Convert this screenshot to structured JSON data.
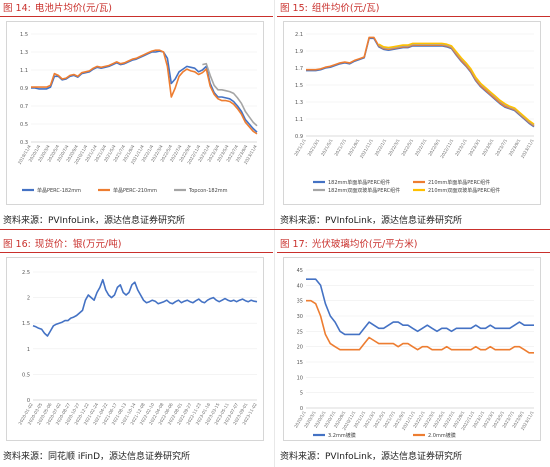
{
  "panels": [
    {
      "fig_label": "图 14:",
      "title": "电池片均价(元/瓦)",
      "source": "资料来源：PVInfoLink，源达信息证券研究所",
      "chart_data": {
        "type": "line",
        "title": "",
        "ylim": [
          0.3,
          1.5
        ],
        "yticks": [
          "0.3",
          "0.5",
          "0.7",
          "0.9",
          "1.1",
          "1.3",
          "1.5"
        ],
        "xticks": [
          "2019/11/4",
          "2020/1/4",
          "2020/3/4",
          "2020/5/4",
          "2020/7/4",
          "2020/9/4",
          "2020/11/4",
          "2021/1/4",
          "2021/3/4",
          "2021/5/4",
          "2021/7/4",
          "2021/9/4",
          "2021/11/4",
          "2022/1/4",
          "2022/3/4",
          "2022/5/4",
          "2022/7/4",
          "2022/9/4",
          "2022/11/4",
          "2023/1/4",
          "2023/3/4",
          "2023/5/4",
          "2023/7/4",
          "2023/9/4",
          "2023/11/4"
        ],
        "legend": "bottom",
        "series": [
          {
            "name": "单晶PERC-182mm",
            "color": "#4472c4",
            "values": [
              0.9,
              0.9,
              0.89,
              0.89,
              0.89,
              0.91,
              1.03,
              1.03,
              0.99,
              1.0,
              1.03,
              1.04,
              1.02,
              1.06,
              1.07,
              1.08,
              1.11,
              1.13,
              1.12,
              1.13,
              1.14,
              1.16,
              1.18,
              1.16,
              1.17,
              1.19,
              1.21,
              1.22,
              1.24,
              1.26,
              1.28,
              1.3,
              1.3,
              1.31,
              1.3,
              1.23,
              0.95,
              1.0,
              1.08,
              1.11,
              1.14,
              1.13,
              1.12,
              1.08,
              1.1,
              1.14,
              0.95,
              0.85,
              0.8,
              0.8,
              0.79,
              0.78,
              0.75,
              0.7,
              0.64,
              0.55,
              0.5,
              0.45,
              0.41
            ]
          },
          {
            "name": "单晶PERC-210mm",
            "color": "#ed7d31",
            "values": [
              0.91,
              0.91,
              0.91,
              0.91,
              0.91,
              0.93,
              1.06,
              1.04,
              1.0,
              1.01,
              1.04,
              1.05,
              1.03,
              1.07,
              1.08,
              1.09,
              1.12,
              1.14,
              1.13,
              1.14,
              1.15,
              1.17,
              1.19,
              1.17,
              1.18,
              1.2,
              1.22,
              1.23,
              1.25,
              1.27,
              1.29,
              1.31,
              1.32,
              1.32,
              1.3,
              1.14,
              0.8,
              0.9,
              1.03,
              1.08,
              1.11,
              1.09,
              1.08,
              1.05,
              1.07,
              1.11,
              0.92,
              0.83,
              0.78,
              0.76,
              0.76,
              0.75,
              0.72,
              0.67,
              0.61,
              0.52,
              0.47,
              0.42,
              0.39
            ]
          },
          {
            "name": "Topcon-182mm",
            "color": "#a5a5a5",
            "values": [
              null,
              null,
              null,
              null,
              null,
              null,
              null,
              null,
              null,
              null,
              null,
              null,
              null,
              null,
              null,
              null,
              null,
              null,
              null,
              null,
              null,
              null,
              null,
              null,
              null,
              null,
              null,
              null,
              null,
              null,
              null,
              null,
              null,
              null,
              null,
              null,
              null,
              null,
              null,
              null,
              null,
              null,
              null,
              null,
              1.16,
              1.17,
              1.04,
              0.93,
              0.88,
              0.88,
              0.87,
              0.86,
              0.84,
              0.79,
              0.73,
              0.64,
              0.58,
              0.52,
              0.48
            ]
          }
        ]
      }
    },
    {
      "fig_label": "图 15:",
      "title": "组件均价(元/瓦)",
      "source": "资料来源：PVInfoLink，源达信息证券研究所",
      "chart_data": {
        "type": "line",
        "title": "",
        "ylim": [
          0.9,
          2.1
        ],
        "yticks": [
          "0.9",
          "1.1",
          "1.3",
          "1.5",
          "1.7",
          "1.9",
          "2.1"
        ],
        "xticks": [
          "2021/1/1",
          "2021/3/1",
          "2021/5/1",
          "2021/7/1",
          "2021/9/1",
          "2021/11/1",
          "2022/1/1",
          "2022/3/1",
          "2022/5/1",
          "2022/7/1",
          "2022/9/1",
          "2022/11/1",
          "2023/1/1",
          "2023/3/1",
          "2023/5/1",
          "2023/7/1",
          "2023/9/1",
          "2023/11/1"
        ],
        "legend": "bottom",
        "series": [
          {
            "name": "182mm单面单晶PERC组件",
            "color": "#4472c4",
            "values": [
              1.67,
              1.67,
              1.67,
              1.68,
              1.7,
              1.71,
              1.73,
              1.75,
              1.76,
              1.75,
              1.78,
              1.8,
              1.82,
              2.05,
              2.05,
              1.95,
              1.92,
              1.91,
              1.92,
              1.93,
              1.94,
              1.94,
              1.96,
              1.96,
              1.96,
              1.96,
              1.96,
              1.96,
              1.96,
              1.95,
              1.93,
              1.85,
              1.78,
              1.72,
              1.65,
              1.55,
              1.48,
              1.43,
              1.38,
              1.33,
              1.28,
              1.24,
              1.22,
              1.2,
              1.15,
              1.1,
              1.05,
              1.01
            ]
          },
          {
            "name": "210mm单面单晶PERC组件",
            "color": "#ed7d31",
            "values": [
              1.68,
              1.68,
              1.68,
              1.69,
              1.71,
              1.72,
              1.74,
              1.76,
              1.77,
              1.76,
              1.79,
              1.81,
              1.83,
              2.06,
              2.06,
              1.96,
              1.93,
              1.92,
              1.93,
              1.94,
              1.95,
              1.95,
              1.97,
              1.97,
              1.97,
              1.97,
              1.97,
              1.97,
              1.97,
              1.96,
              1.94,
              1.86,
              1.79,
              1.73,
              1.66,
              1.56,
              1.49,
              1.44,
              1.39,
              1.34,
              1.29,
              1.25,
              1.23,
              1.21,
              1.16,
              1.11,
              1.06,
              1.02
            ]
          },
          {
            "name": "182mm双面双玻单晶PERC组件",
            "color": "#a5a5a5",
            "values": [
              null,
              null,
              null,
              null,
              null,
              null,
              null,
              null,
              null,
              null,
              null,
              null,
              null,
              null,
              null,
              1.97,
              1.94,
              1.93,
              1.94,
              1.95,
              1.96,
              1.96,
              1.98,
              1.98,
              1.98,
              1.98,
              1.98,
              1.98,
              1.98,
              1.97,
              1.95,
              1.88,
              1.81,
              1.75,
              1.68,
              1.58,
              1.51,
              1.46,
              1.41,
              1.36,
              1.31,
              1.27,
              1.24,
              1.22,
              1.17,
              1.12,
              1.07,
              1.03
            ]
          },
          {
            "name": "210mm双面双玻单晶PERC组件",
            "color": "#ffc000",
            "values": [
              null,
              null,
              null,
              null,
              null,
              null,
              null,
              null,
              null,
              null,
              null,
              null,
              null,
              null,
              null,
              1.98,
              1.95,
              1.94,
              1.95,
              1.96,
              1.97,
              1.97,
              1.99,
              1.99,
              1.99,
              1.99,
              1.99,
              1.99,
              1.99,
              1.98,
              1.96,
              1.89,
              1.82,
              1.76,
              1.69,
              1.59,
              1.52,
              1.47,
              1.42,
              1.37,
              1.32,
              1.28,
              1.25,
              1.23,
              1.18,
              1.13,
              1.08,
              1.04
            ]
          }
        ]
      }
    },
    {
      "fig_label": "图 16:",
      "title": "现货价：银(万元/吨)",
      "source": "资料来源：同花顺 iFinD，源达信息证券研究所",
      "chart_data": {
        "type": "line",
        "title": "",
        "ylim": [
          0,
          2.5
        ],
        "yticks": [
          "0",
          "0.5",
          "1",
          "1.5",
          "2",
          "2.5"
        ],
        "xticks": [
          "2020-01-02",
          "2020-03-05",
          "2020-05-06",
          "2020-07-02",
          "2020-08-27",
          "2020-10-27",
          "2020-12-22",
          "2021-02-24",
          "2021-04-22",
          "2021-06-17",
          "2021-08-13",
          "2021-10-14",
          "2021-12-08",
          "2022-02-10",
          "2022-04-08",
          "2022-06-06",
          "2022-08-01",
          "2022-09-27",
          "2022-11-23",
          "2023-01-16",
          "2023-03-15",
          "2023-05-11",
          "2023-07-07",
          "2023-09-01",
          "2023-11-02"
        ],
        "legend": "none",
        "series": [
          {
            "name": "",
            "color": "#4472c4",
            "values": [
              1.45,
              1.43,
              1.4,
              1.38,
              1.3,
              1.25,
              1.35,
              1.45,
              1.48,
              1.5,
              1.52,
              1.55,
              1.55,
              1.6,
              1.62,
              1.65,
              1.7,
              1.75,
              1.95,
              2.05,
              2.0,
              1.95,
              2.1,
              2.2,
              2.35,
              2.15,
              2.05,
              2.0,
              2.05,
              2.2,
              2.25,
              2.1,
              2.05,
              2.1,
              2.25,
              2.3,
              2.15,
              2.05,
              1.95,
              1.9,
              1.92,
              1.95,
              1.93,
              1.88,
              1.9,
              1.92,
              1.95,
              1.9,
              1.88,
              1.92,
              1.95,
              1.9,
              1.93,
              1.95,
              1.92,
              1.9,
              1.94,
              1.97,
              1.92,
              1.9,
              1.95,
              1.98,
              2.0,
              1.95,
              1.92,
              1.95,
              1.98,
              1.95,
              1.93,
              1.95,
              1.92,
              1.95,
              1.97,
              1.94,
              1.92,
              1.95,
              1.93,
              1.92
            ]
          }
        ]
      }
    },
    {
      "fig_label": "图 17:",
      "title": "光伏玻璃均价(元/平方米)",
      "source": "资料来源：PVInfoLink，源达信息证券研究所",
      "chart_data": {
        "type": "line",
        "title": "",
        "ylim": [
          0,
          45
        ],
        "yticks": [
          "0",
          "5",
          "10",
          "15",
          "20",
          "25",
          "30",
          "35",
          "40",
          "45"
        ],
        "xticks": [
          "2020/1/1",
          "2020/3/1",
          "2020/5/1",
          "2020/7/1",
          "2020/9/1",
          "2020/11/1",
          "2021/1/1",
          "2021/3/1",
          "2021/5/1",
          "2021/7/1",
          "2021/9/1",
          "2021/11/1",
          "2022/1/1",
          "2022/3/1",
          "2022/5/1",
          "2022/7/1",
          "2022/9/1",
          "2022/11/1",
          "2023/1/1",
          "2023/3/1",
          "2023/5/1",
          "2023/7/1",
          "2023/9/1",
          "2023/11/1"
        ],
        "legend": "bottom",
        "series": [
          {
            "name": "3.2mm镀膜",
            "color": "#4472c4",
            "values": [
              42,
              42,
              42,
              40,
              34,
              30,
              28,
              25,
              24,
              24,
              24,
              24,
              26,
              28,
              27,
              26,
              26,
              27,
              28,
              28,
              27,
              27,
              26,
              25,
              26,
              27,
              26,
              25,
              26,
              26,
              25,
              26,
              26,
              26,
              26,
              27,
              26,
              26,
              27,
              26,
              26,
              26,
              26,
              27,
              28,
              27,
              27,
              27
            ]
          },
          {
            "name": "2.0mm镀膜",
            "color": "#ed7d31",
            "values": [
              35,
              35,
              34,
              30,
              24,
              21,
              20,
              19,
              19,
              19,
              19,
              19,
              21,
              23,
              22,
              21,
              21,
              21,
              21,
              20,
              21,
              21,
              20,
              19,
              20,
              20,
              19,
              19,
              19,
              20,
              19,
              19,
              19,
              19,
              19,
              20,
              19,
              19,
              20,
              19,
              19,
              19,
              19,
              20,
              20,
              19,
              18,
              18
            ]
          }
        ]
      }
    }
  ]
}
